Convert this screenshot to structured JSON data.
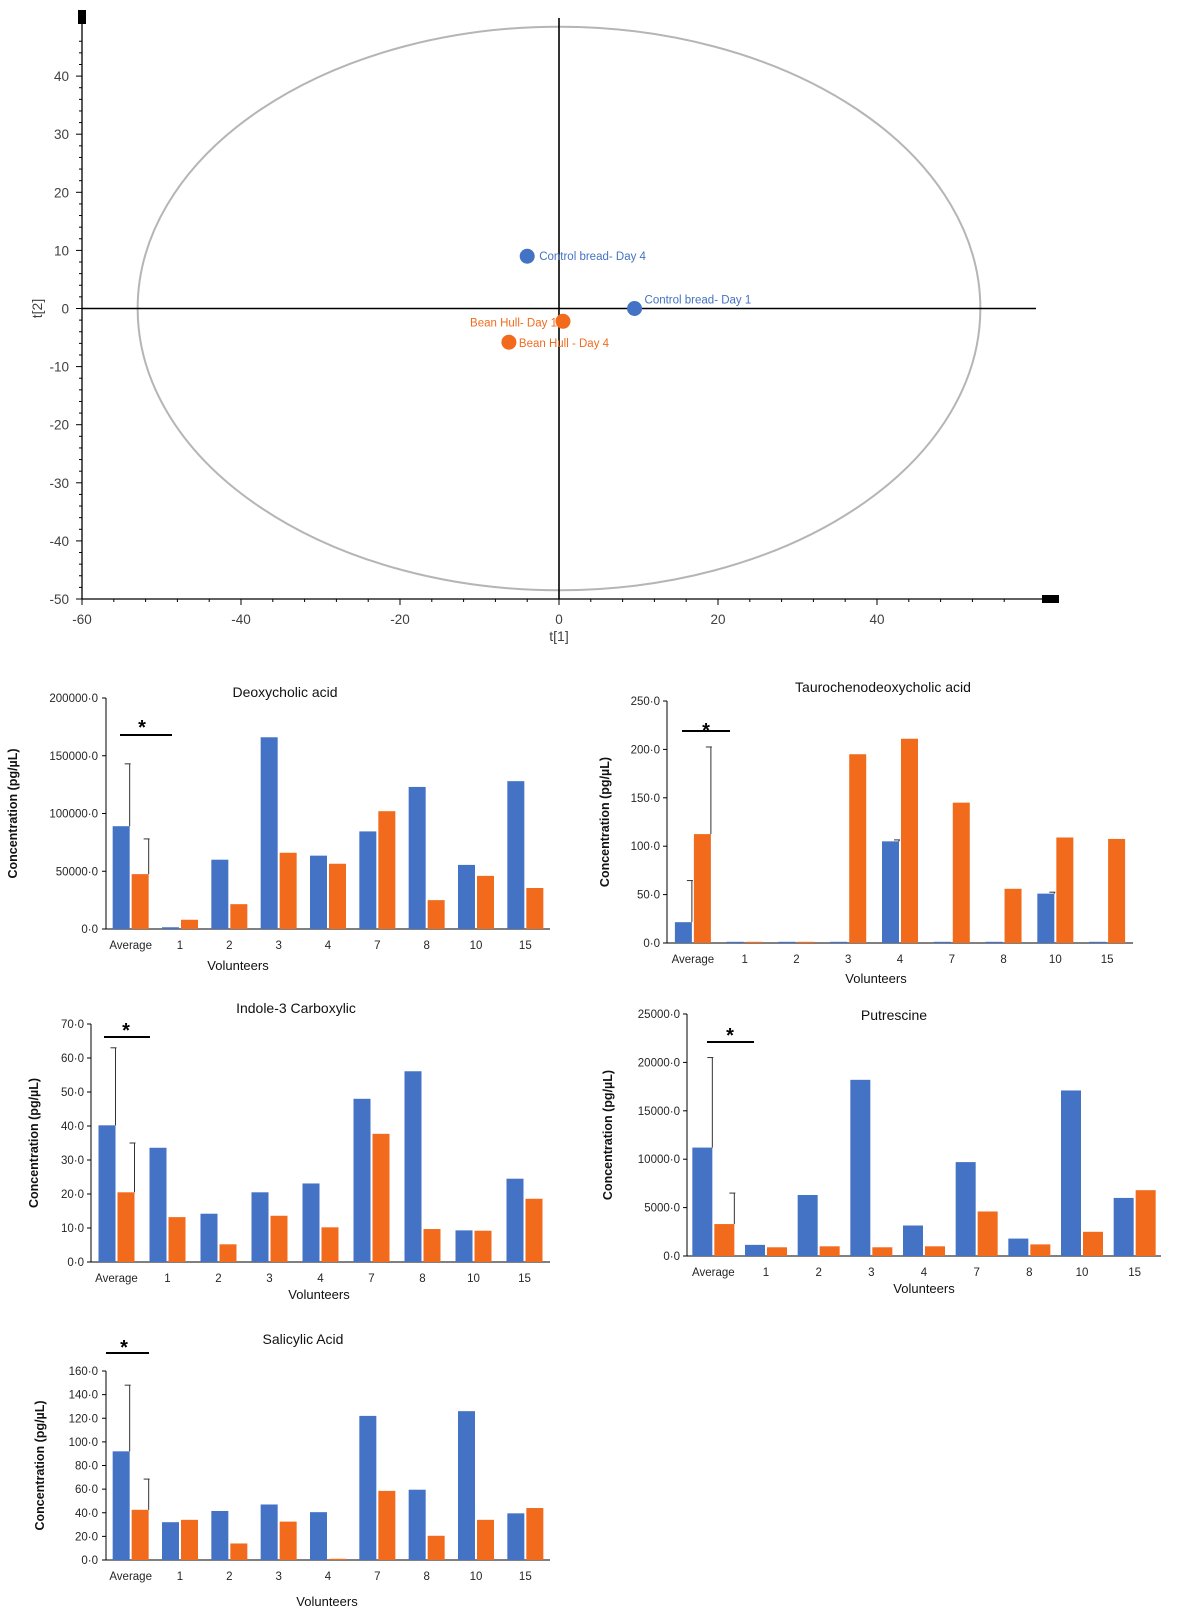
{
  "colors": {
    "control": "#4472C4",
    "bean": "#F26B1D",
    "ellipse": "#B5B5B5",
    "axis": "#000000"
  },
  "chart_data": [
    {
      "type": "scatter",
      "xlabel": "t[1]",
      "ylabel": "t[2]",
      "xlim": [
        -60,
        60
      ],
      "ylim": [
        -50,
        50
      ],
      "xticks": [
        -60,
        -40,
        -20,
        0,
        20,
        40
      ],
      "yticks": [
        40,
        30,
        20,
        10,
        0,
        -10,
        -20,
        -30,
        -40,
        -50
      ],
      "ellipse": {
        "cx": 0,
        "cy": 0,
        "rx": 53,
        "ry": 48.5
      },
      "points": [
        {
          "label": "Control bread- Day 4",
          "x": -4,
          "y": 9,
          "color": "#4472C4",
          "label_color": "#4472C4"
        },
        {
          "label": "Control bread- Day 1",
          "x": 9.5,
          "y": 0,
          "color": "#4472C4",
          "label_color": "#4472C4"
        },
        {
          "label": "Bean Hull- Day 1",
          "x": 0.5,
          "y": -2.2,
          "color": "#F26B1D",
          "label_color": "#F26B1D"
        },
        {
          "label": "Bean Hull - Day 4",
          "x": -6.3,
          "y": -5.8,
          "color": "#F26B1D",
          "label_color": "#F26B1D"
        }
      ]
    },
    {
      "type": "bar",
      "title": "Deoxycholic acid",
      "xlabel": "Volunteers",
      "ylabel": "Concentration (pg/µL)",
      "categories": [
        "Average",
        "1",
        "2",
        "3",
        "4",
        "7",
        "8",
        "10",
        "15"
      ],
      "ylim": [
        0,
        200000
      ],
      "yticks": [
        "200000·0",
        "150000·0",
        "100000·0",
        "50000·0",
        "0·0"
      ],
      "series": [
        {
          "values": [
            89000,
            1500,
            60000,
            166000,
            63500,
            84500,
            123000,
            55500,
            128000
          ],
          "error": [
            54000,
            null,
            null,
            null,
            null,
            null,
            null,
            null,
            null
          ]
        },
        {
          "values": [
            47500,
            8000,
            21500,
            66000,
            56500,
            102000,
            25000,
            46000,
            35500
          ],
          "error": [
            30500,
            null,
            null,
            null,
            null,
            null,
            null,
            null,
            null
          ]
        }
      ],
      "significance": "*"
    },
    {
      "type": "bar",
      "title": "Taurochenodeoxycholic  acid",
      "xlabel": "Volunteers",
      "ylabel": "Concentration  (pg/µL)",
      "categories": [
        "Average",
        "1",
        "2",
        "3",
        "4",
        "7",
        "8",
        "10",
        "15"
      ],
      "ylim": [
        0,
        250
      ],
      "yticks": [
        "250·0",
        "200·0",
        "150·0",
        "100·0",
        "50·0",
        "0·0"
      ],
      "series": [
        {
          "values": [
            21.5,
            0,
            0,
            0,
            105,
            0,
            0,
            51,
            0
          ],
          "error": [
            43,
            null,
            null,
            null,
            1.5,
            null,
            null,
            1.5,
            null
          ]
        },
        {
          "values": [
            112.5,
            0,
            0,
            195,
            211,
            145,
            56,
            109,
            107.5
          ],
          "error": [
            90,
            null,
            null,
            null,
            null,
            null,
            null,
            null,
            null
          ]
        }
      ],
      "significance": "*"
    },
    {
      "type": "bar",
      "title": "Indole-3 Carboxylic",
      "xlabel": "Volunteers",
      "ylabel": "Concentration (pg/µL)",
      "categories": [
        "Average",
        "1",
        "2",
        "3",
        "4",
        "7",
        "8",
        "10",
        "15"
      ],
      "ylim": [
        0,
        70
      ],
      "yticks": [
        "70·0",
        "60·0",
        "50·0",
        "40·0",
        "30·0",
        "20·0",
        "10·0",
        "0·0"
      ],
      "series": [
        {
          "values": [
            40.2,
            33.6,
            14.2,
            20.5,
            23.1,
            48,
            56.1,
            9.3,
            24.5
          ],
          "error": [
            22.8,
            null,
            null,
            null,
            null,
            null,
            null,
            null,
            null
          ]
        },
        {
          "values": [
            20.5,
            13.2,
            5.2,
            13.6,
            10.2,
            37.7,
            9.7,
            9.2,
            18.6
          ],
          "error": [
            14.5,
            null,
            null,
            null,
            null,
            null,
            null,
            null,
            null
          ]
        }
      ],
      "significance": "*"
    },
    {
      "type": "bar",
      "title": "Putrescine",
      "xlabel": "Volunteers",
      "ylabel": "Concentration (pg/µL)",
      "categories": [
        "Average",
        "1",
        "2",
        "3",
        "4",
        "7",
        "8",
        "10",
        "15"
      ],
      "ylim": [
        0,
        25000
      ],
      "yticks": [
        "25000·0",
        "20000·0",
        "15000·0",
        "10000·0",
        "5000·0",
        "0·0"
      ],
      "series": [
        {
          "values": [
            11200,
            1150,
            6300,
            18200,
            3150,
            9700,
            1800,
            17100,
            6000
          ],
          "error": [
            9300,
            null,
            null,
            null,
            null,
            null,
            null,
            null,
            null
          ]
        },
        {
          "values": [
            3300,
            900,
            1000,
            900,
            1000,
            4600,
            1200,
            2500,
            6800
          ],
          "error": [
            3200,
            null,
            null,
            null,
            null,
            null,
            null,
            null,
            null
          ]
        }
      ],
      "significance": "*"
    },
    {
      "type": "bar",
      "title": "Salicylic Acid",
      "xlabel": "Volunteers",
      "ylabel": "Concentration (pg/µL)",
      "categories": [
        "Average",
        "1",
        "2",
        "3",
        "4",
        "7",
        "8",
        "10",
        "15"
      ],
      "ylim": [
        0,
        160
      ],
      "yticks": [
        "160·0",
        "140·0",
        "120·0",
        "100·0",
        "80·0",
        "60·0",
        "40·0",
        "20·0",
        "0·0"
      ],
      "series": [
        {
          "values": [
            92,
            32,
            41.5,
            47,
            40.5,
            122,
            59.5,
            126,
            39.5
          ],
          "error": [
            56,
            null,
            null,
            null,
            null,
            null,
            null,
            null,
            null
          ]
        },
        {
          "values": [
            42.5,
            34,
            14,
            32.5,
            0,
            58.5,
            20.5,
            34,
            44
          ],
          "error": [
            26,
            null,
            null,
            null,
            null,
            null,
            null,
            null,
            null
          ]
        }
      ],
      "significance": "*"
    }
  ]
}
